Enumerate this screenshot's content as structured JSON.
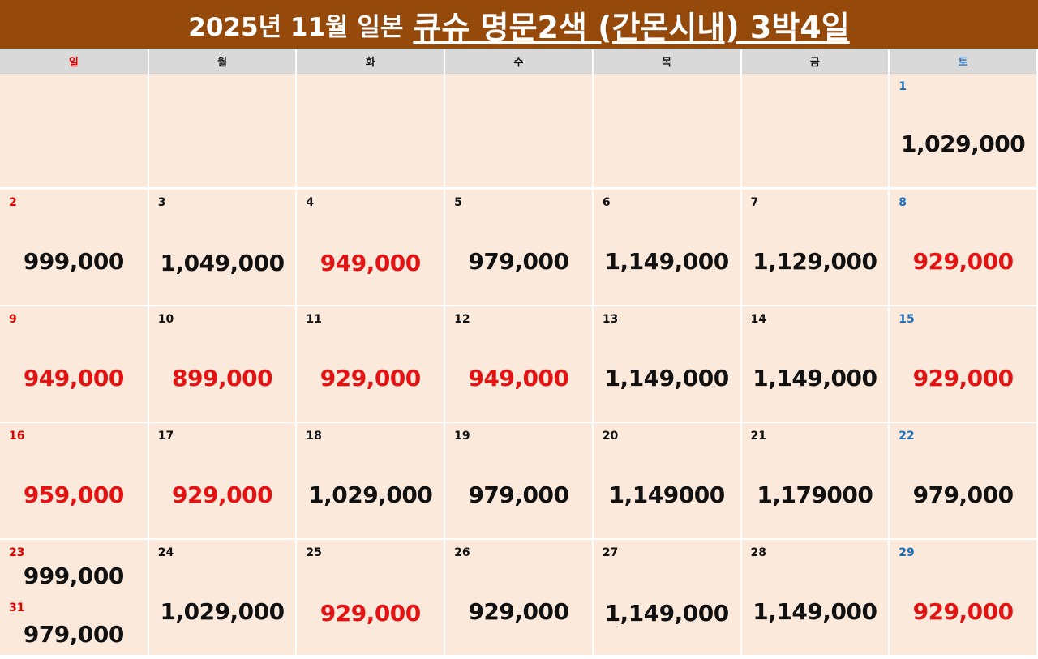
{
  "title": {
    "prefix": "2025년 11월 일본",
    "main": "큐슈 명문2색 (간몬시내) 3박4일"
  },
  "weekdays": [
    "일",
    "월",
    "화",
    "수",
    "목",
    "금",
    "토"
  ],
  "colors": {
    "banner": "#954a0c",
    "cell_bg": "#fbe9dc",
    "sunday": "#e00000",
    "saturday": "#1e6fba",
    "highlight_price": "#e31313"
  },
  "weeks": [
    [
      null,
      null,
      null,
      null,
      null,
      null,
      {
        "day": "1",
        "price": "1,029,000",
        "highlight": false
      }
    ],
    [
      {
        "day": "2",
        "price": "999,000",
        "highlight": false
      },
      {
        "day": "3",
        "price": "1,049,000",
        "highlight": false
      },
      {
        "day": "4",
        "price": "949,000",
        "highlight": true
      },
      {
        "day": "5",
        "price": "979,000",
        "highlight": false
      },
      {
        "day": "6",
        "price": "1,149,000",
        "highlight": false
      },
      {
        "day": "7",
        "price": "1,129,000",
        "highlight": false
      },
      {
        "day": "8",
        "price": "929,000",
        "highlight": true
      }
    ],
    [
      {
        "day": "9",
        "price": "949,000",
        "highlight": true
      },
      {
        "day": "10",
        "price": "899,000",
        "highlight": true
      },
      {
        "day": "11",
        "price": "929,000",
        "highlight": true
      },
      {
        "day": "12",
        "price": "949,000",
        "highlight": true
      },
      {
        "day": "13",
        "price": "1,149,000",
        "highlight": false
      },
      {
        "day": "14",
        "price": "1,149,000",
        "highlight": false
      },
      {
        "day": "15",
        "price": "929,000",
        "highlight": true
      }
    ],
    [
      {
        "day": "16",
        "price": "959,000",
        "highlight": true
      },
      {
        "day": "17",
        "price": "929,000",
        "highlight": true
      },
      {
        "day": "18",
        "price": "1,029,000",
        "highlight": false
      },
      {
        "day": "19",
        "price": "979,000",
        "highlight": false
      },
      {
        "day": "20",
        "price": "1,149000",
        "highlight": false
      },
      {
        "day": "21",
        "price": "1,179000",
        "highlight": false
      },
      {
        "day": "22",
        "price": "979,000",
        "highlight": false
      }
    ],
    [
      {
        "day": "23",
        "price": "999,000",
        "highlight": false,
        "extra_day": "31",
        "extra_price": "979,000"
      },
      {
        "day": "24",
        "price": "1,029,000",
        "highlight": false
      },
      {
        "day": "25",
        "price": "929,000",
        "highlight": true
      },
      {
        "day": "26",
        "price": "929,000",
        "highlight": false
      },
      {
        "day": "27",
        "price": "1,149,000",
        "highlight": false
      },
      {
        "day": "28",
        "price": "1,149,000",
        "highlight": false
      },
      {
        "day": "29",
        "price": "929,000",
        "highlight": true
      }
    ]
  ]
}
